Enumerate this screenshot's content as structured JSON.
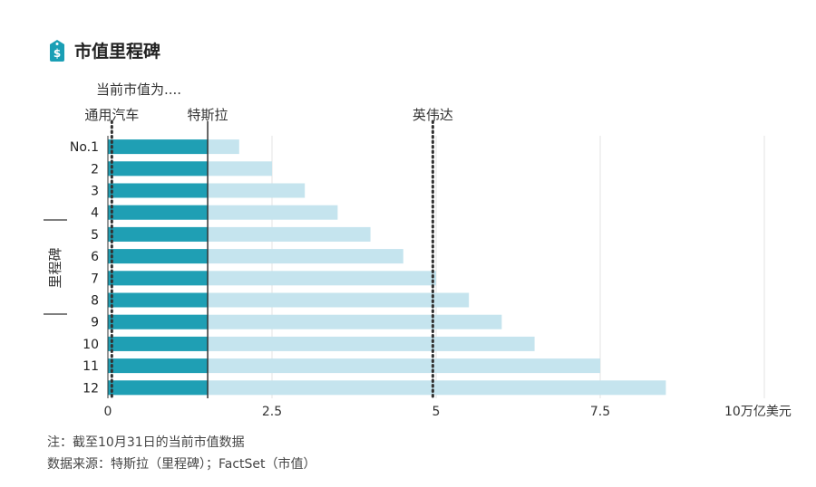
{
  "chart_data": {
    "type": "bar",
    "title": "市值里程碑",
    "subtitle": "当前市值为....",
    "ylabel": "里程碑",
    "categories": [
      "No.1",
      "2",
      "3",
      "4",
      "5",
      "6",
      "7",
      "8",
      "9",
      "10",
      "11",
      "12"
    ],
    "values": [
      2,
      2.5,
      3,
      3.5,
      4,
      4.5,
      5,
      5.5,
      6,
      6.5,
      7.5,
      8.5
    ],
    "xlim": [
      0,
      10
    ],
    "xticks": [
      0,
      2.5,
      5,
      7.5,
      10
    ],
    "xtick_labels": [
      "0",
      "2.5",
      "5",
      "7.5",
      "10万亿美元"
    ],
    "grid": true,
    "reference_lines": [
      {
        "label": "通用汽车",
        "value": 0.06,
        "style": "dotted"
      },
      {
        "label": "特斯拉",
        "value": 1.52,
        "style": "solid"
      },
      {
        "label": "英伟达",
        "value": 4.95,
        "style": "dotted"
      }
    ],
    "colors": {
      "filled": "#1f9fb4",
      "remaining": "#c5e4ee",
      "line": "#333333",
      "grid": "#e3e3e3"
    }
  },
  "footer": {
    "note": "注：截至10月31日的当前市值数据",
    "source": "数据来源：特斯拉（里程碑）；FactSet（市值）"
  },
  "icon": {
    "name": "price-tag-icon",
    "color": "#1a9fb5"
  }
}
